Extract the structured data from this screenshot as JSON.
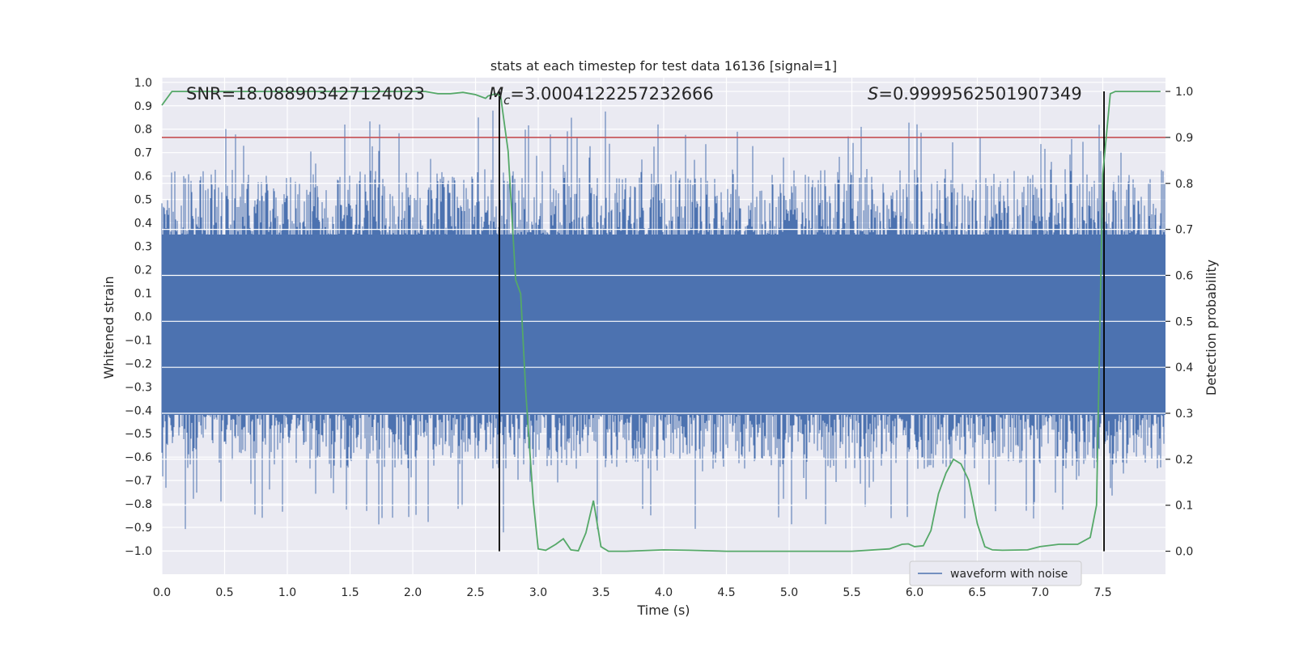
{
  "chart_data": {
    "type": "line",
    "title": "stats at each timestep for test data 16136 [signal=1]",
    "xlabel": "Time (s)",
    "ylabel_left": "Whitened strain",
    "ylabel_right": "Detection probability",
    "xlim": [
      0,
      8
    ],
    "ylim_left": [
      -1.1,
      1.02
    ],
    "ylim_right": [
      -0.05,
      1.03
    ],
    "x_ticks": [
      "0.0",
      "0.5",
      "1.0",
      "1.5",
      "2.0",
      "2.5",
      "3.0",
      "3.5",
      "4.0",
      "4.5",
      "5.0",
      "5.5",
      "6.0",
      "6.5",
      "7.0",
      "7.5"
    ],
    "x_tick_values": [
      0,
      0.5,
      1,
      1.5,
      2,
      2.5,
      3,
      3.5,
      4,
      4.5,
      5,
      5.5,
      6,
      6.5,
      7,
      7.5
    ],
    "y_left_ticks": [
      "1.0",
      "0.9",
      "0.8",
      "0.7",
      "0.6",
      "0.5",
      "0.4",
      "0.3",
      "0.2",
      "0.1",
      "0.0",
      "−0.1",
      "−0.2",
      "−0.3",
      "−0.4",
      "−0.5",
      "−0.6",
      "−0.7",
      "−0.8",
      "−0.9",
      "−1.0"
    ],
    "y_left_tick_values": [
      1.0,
      0.9,
      0.8,
      0.7,
      0.6,
      0.5,
      0.4,
      0.3,
      0.2,
      0.1,
      0.0,
      -0.1,
      -0.2,
      -0.3,
      -0.4,
      -0.5,
      -0.6,
      -0.7,
      -0.8,
      -0.9,
      -1.0
    ],
    "y_right_ticks": [
      "1.0",
      "0.9",
      "0.8",
      "0.7",
      "0.6",
      "0.5",
      "0.4",
      "0.3",
      "0.2",
      "0.1",
      "0.0"
    ],
    "y_right_tick_values": [
      1.0,
      0.9,
      0.8,
      0.7,
      0.6,
      0.5,
      0.4,
      0.3,
      0.2,
      0.1,
      0.0
    ],
    "annotations": {
      "snr": "SNR=18.088903427124023",
      "mc_symbol": "M",
      "mc_sub": "c",
      "mc_value": "=3.0004122257232666",
      "s_symbol": "S",
      "s_value": "=0.9999562501907349"
    },
    "threshold_line": {
      "axis": "right",
      "value": 0.9,
      "color": "#c44e52"
    },
    "vertical_markers": [
      2.69,
      7.51
    ],
    "marker_range_right": [
      0.0,
      1.0
    ],
    "legend": {
      "label": "waveform with noise",
      "location": "lower right"
    },
    "series": [
      {
        "name": "waveform with noise",
        "axis": "left",
        "color": "#4c72b0",
        "style": "dense noise",
        "envelope_core": [
          -0.42,
          0.35
        ],
        "peak_range": [
          -1.0,
          0.93
        ]
      },
      {
        "name": "detection probability",
        "axis": "right",
        "color": "#55a868",
        "x": [
          0.0,
          0.08,
          0.3,
          0.6,
          0.9,
          1.2,
          1.5,
          1.8,
          2.1,
          2.2,
          2.3,
          2.4,
          2.5,
          2.58,
          2.6,
          2.66,
          2.7,
          2.76,
          2.82,
          2.86,
          2.9,
          2.96,
          3.0,
          3.06,
          3.14,
          3.2,
          3.26,
          3.32,
          3.38,
          3.44,
          3.5,
          3.56,
          3.7,
          4.0,
          4.2,
          4.5,
          4.8,
          5.0,
          5.2,
          5.5,
          5.8,
          5.9,
          5.95,
          6.0,
          6.07,
          6.13,
          6.19,
          6.25,
          6.31,
          6.37,
          6.43,
          6.5,
          6.56,
          6.62,
          6.7,
          6.9,
          7.0,
          7.15,
          7.3,
          7.4,
          7.45,
          7.5,
          7.56,
          7.6,
          7.7,
          7.96
        ],
        "values": [
          0.97,
          1.0,
          1.0,
          1.0,
          1.0,
          1.0,
          1.0,
          1.0,
          1.0,
          0.995,
          0.995,
          0.998,
          0.993,
          0.985,
          0.99,
          0.995,
          0.99,
          0.87,
          0.59,
          0.56,
          0.35,
          0.11,
          0.005,
          0.002,
          0.015,
          0.027,
          0.003,
          0.001,
          0.04,
          0.11,
          0.01,
          0.0,
          0.0,
          0.003,
          0.002,
          0.0,
          0.0,
          0.0,
          0.0,
          0.0,
          0.005,
          0.015,
          0.016,
          0.01,
          0.012,
          0.045,
          0.125,
          0.17,
          0.2,
          0.19,
          0.155,
          0.06,
          0.01,
          0.003,
          0.002,
          0.003,
          0.01,
          0.015,
          0.015,
          0.03,
          0.1,
          0.82,
          0.995,
          1.0,
          1.0,
          1.0
        ]
      }
    ]
  }
}
